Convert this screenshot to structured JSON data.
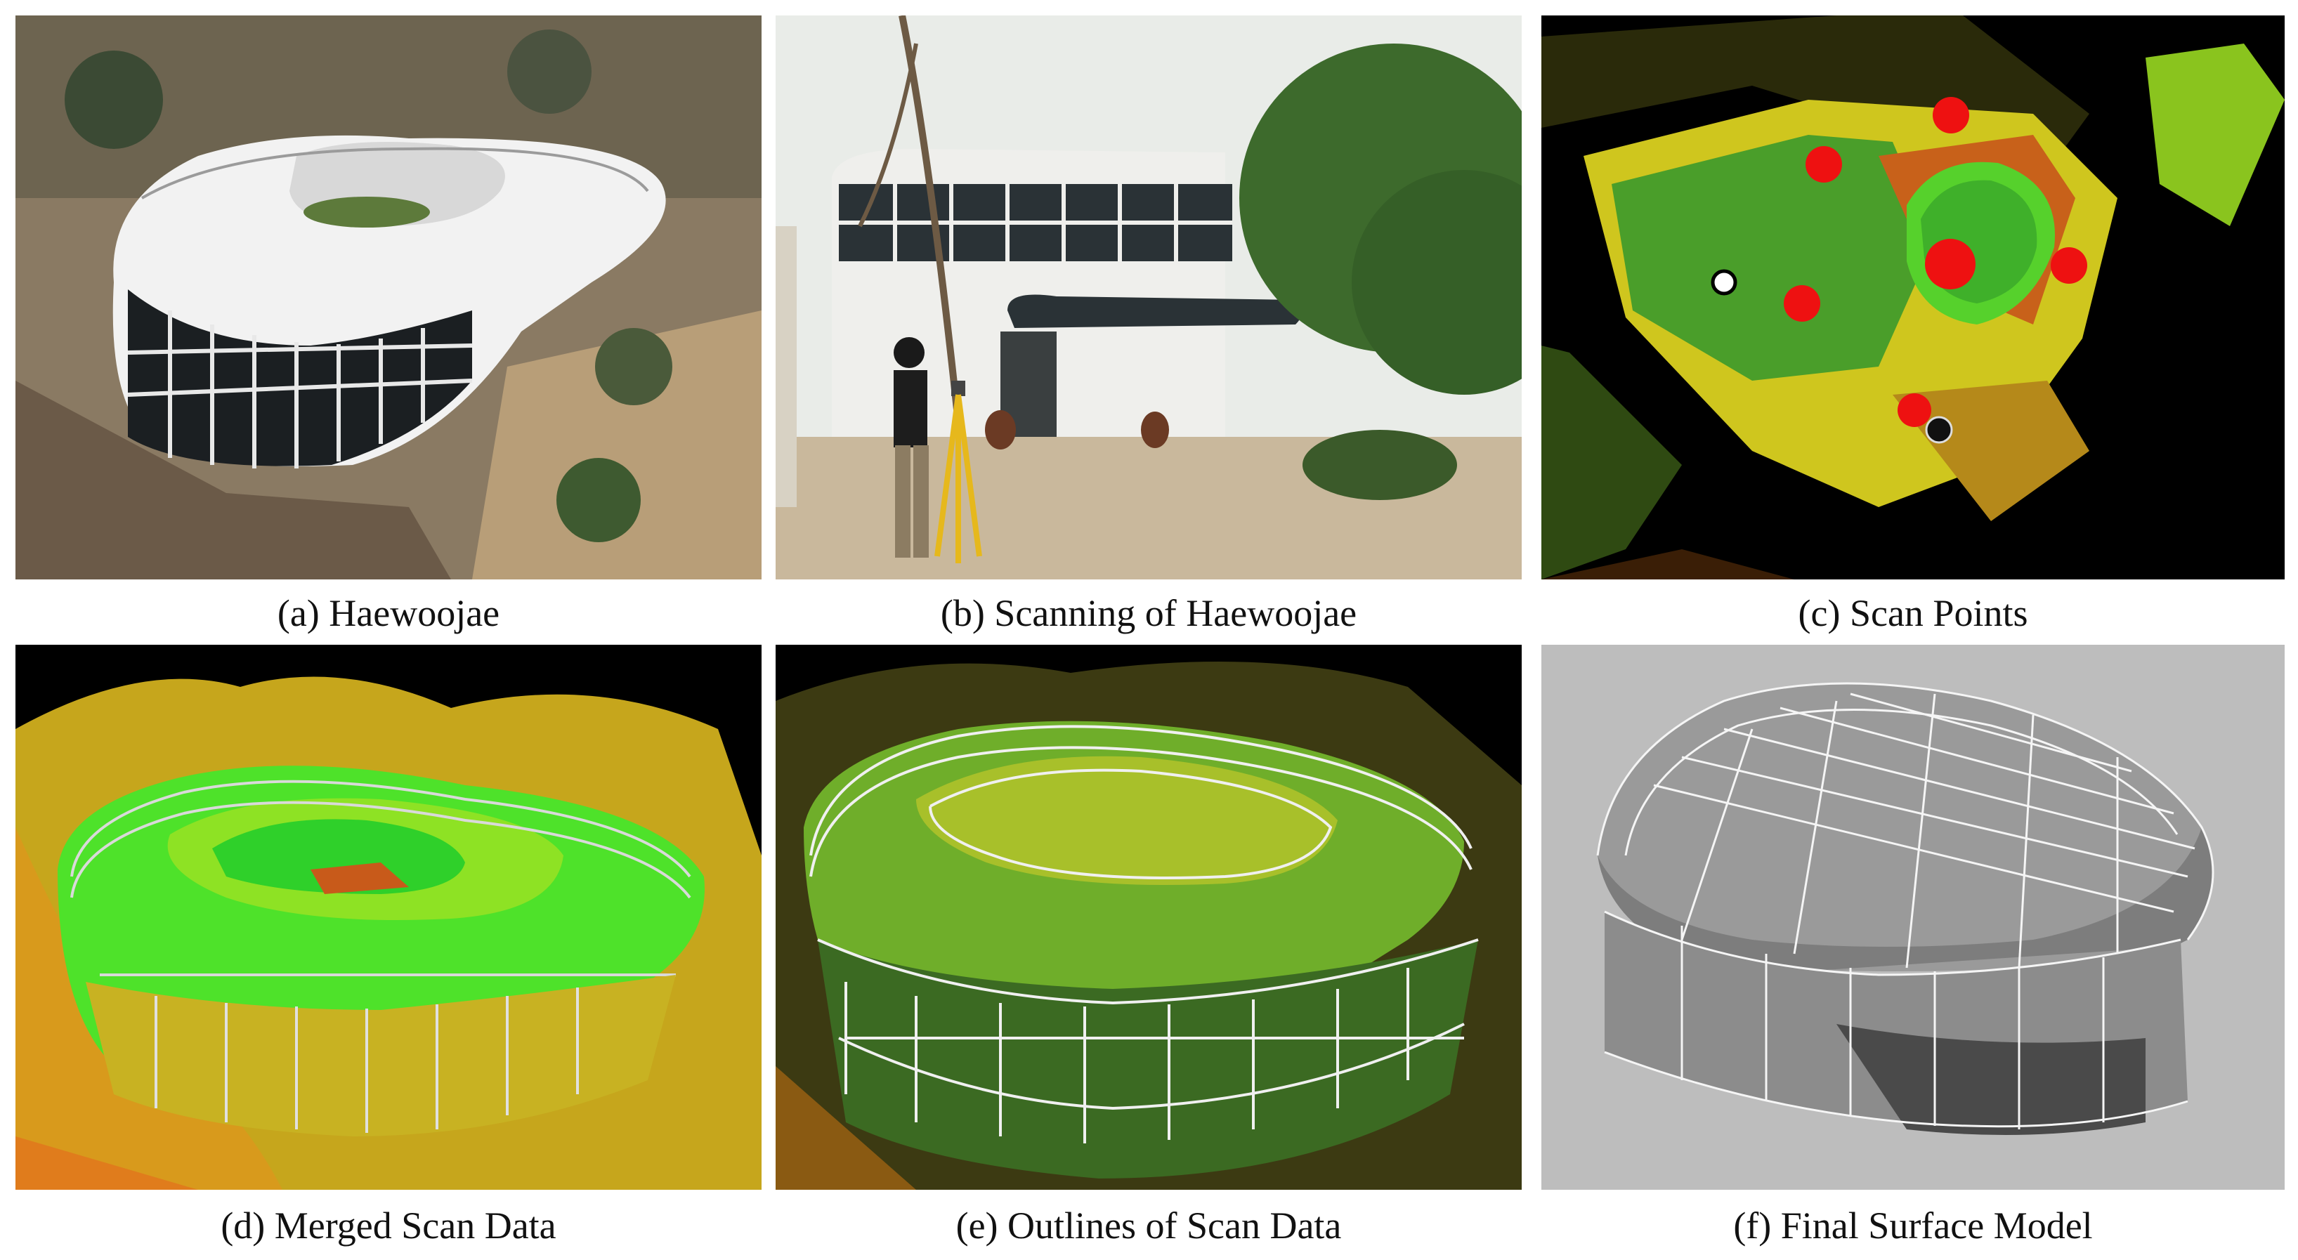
{
  "figure": {
    "panels": [
      {
        "id": "a",
        "caption": "(a) Haewoojae"
      },
      {
        "id": "b",
        "caption": "(b) Scanning of Haewoojae"
      },
      {
        "id": "c",
        "caption": "(c) Scan Points"
      },
      {
        "id": "d",
        "caption": "(d) Merged Scan Data"
      },
      {
        "id": "e",
        "caption": "(e) Outlines of Scan Data"
      },
      {
        "id": "f",
        "caption": "(f) Final Surface Model"
      }
    ]
  },
  "colors": {
    "building_white": "#f2f2f2",
    "glass": "#1b1f22",
    "scan_green": "#4ee22a",
    "scan_yellow": "#e0d21e",
    "scan_orange": "#e27a1a",
    "scan_point_marker": "#ee1111",
    "model_bg": "#bdbdbd"
  }
}
